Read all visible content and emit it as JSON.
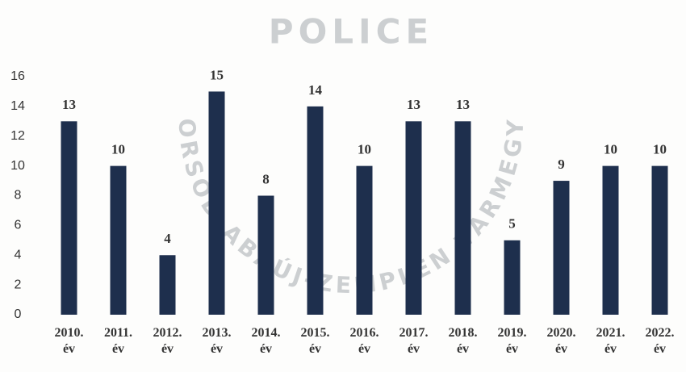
{
  "chart_data": {
    "type": "bar",
    "annotations": [
      "POLICE",
      "BORSOD-ABAÚJ-ZEMPLÉN VÁRMEGYE"
    ],
    "categories": [
      "2010. év",
      "2011. év",
      "2012. év",
      "2013. év",
      "2014. év",
      "2015. év",
      "2016. év",
      "2017. év",
      "2018. év",
      "2019. év",
      "2020. év",
      "2021. év",
      "2022. év"
    ],
    "values": [
      13,
      10,
      4,
      15,
      8,
      14,
      10,
      13,
      13,
      5,
      9,
      10,
      10
    ],
    "color": "#1e2f4d",
    "ylim": [
      0,
      16
    ],
    "yticks": [
      0,
      2,
      4,
      6,
      8,
      10,
      12,
      14,
      16
    ],
    "grid": false
  }
}
